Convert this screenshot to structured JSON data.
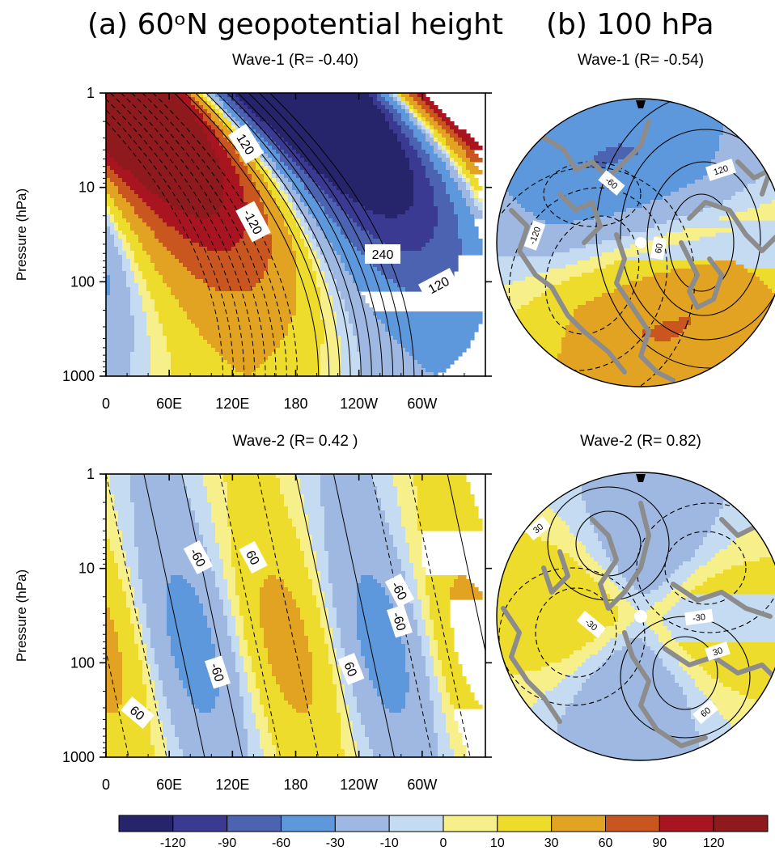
{
  "panel_titles": {
    "a": "(a) 60ᵒN geopotential height",
    "b": "(b) 100 hPa"
  },
  "colors": {
    "levels": [
      -120,
      -90,
      -60,
      -30,
      -10,
      0,
      10,
      30,
      60,
      90,
      120
    ],
    "fill": [
      "#26256b",
      "#3a3a92",
      "#4b63b0",
      "#5d98dc",
      "#9fb8e1",
      "#c4dbf1",
      "#f6ef8a",
      "#eedc2c",
      "#e3a322",
      "#c8561e",
      "#a81420",
      "#8e1a1e"
    ],
    "coast": "#8c8c8c"
  },
  "chart_data": [
    {
      "type": "heatmap",
      "title": "Wave-1 (R= -0.40)",
      "ylabel": "Pressure (hPa)",
      "yscale": "log",
      "ylim": [
        1000,
        1
      ],
      "yticks": [
        "1",
        "10",
        "100",
        "1000"
      ],
      "xticks": [
        "0",
        "60E",
        "120E",
        "180",
        "120W",
        "60W"
      ],
      "contour_labels": [
        "120",
        "-120",
        "240",
        "120"
      ]
    },
    {
      "type": "heatmap",
      "title": "Wave-1 (R= -0.54)",
      "projection": "polar-stereographic",
      "contour_labels": [
        "-60",
        "120",
        "-120",
        "60"
      ]
    },
    {
      "type": "heatmap",
      "title": "Wave-2 (R= 0.42 )",
      "ylabel": "Pressure (hPa)",
      "yscale": "log",
      "ylim": [
        1000,
        1
      ],
      "yticks": [
        "1",
        "10",
        "100",
        "1000"
      ],
      "xticks": [
        "0",
        "60E",
        "120E",
        "180",
        "120W",
        "60W"
      ],
      "contour_labels": [
        "-60",
        "60",
        "-60",
        "-60",
        "-60",
        "60",
        "60"
      ]
    },
    {
      "type": "heatmap",
      "title": "Wave-2 (R= 0.82)",
      "projection": "polar-stereographic",
      "contour_labels": [
        "30",
        "-30",
        "-30",
        "30",
        "60"
      ]
    }
  ],
  "colorbar": {
    "labels": [
      "-120",
      "-90",
      "-60",
      "-30",
      "-10",
      "0",
      "10",
      "30",
      "60",
      "90",
      "120"
    ]
  }
}
